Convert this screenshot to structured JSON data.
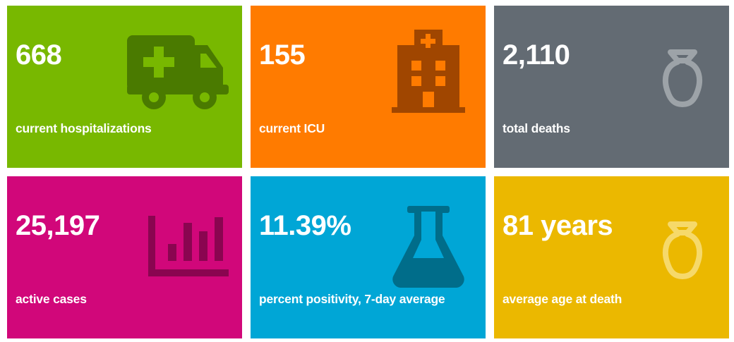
{
  "tiles": [
    {
      "value": "668",
      "label": "current hospitalizations",
      "icon": "ambulance-icon",
      "bg": "#78b800",
      "icon_color": "#4a7a00"
    },
    {
      "value": "155",
      "label": "current ICU",
      "icon": "hospital-icon",
      "bg": "#ff7b00",
      "icon_color": "#a04600"
    },
    {
      "value": "2,110",
      "label": "total deaths",
      "icon": "urn-icon",
      "bg": "#636b73",
      "icon_color": "#9da3a8"
    },
    {
      "value": "25,197",
      "label": "active cases",
      "icon": "bar-chart-icon",
      "bg": "#d1077a",
      "icon_color": "#8a0550"
    },
    {
      "value": "11.39%",
      "label": "percent positivity, 7-day average",
      "icon": "flask-icon",
      "bg": "#00a6d6",
      "icon_color": "#006d8a"
    },
    {
      "value": "81 years",
      "label": "average age at death",
      "icon": "urn-icon",
      "bg": "#ebb800",
      "icon_color": "#f6d96a"
    }
  ]
}
